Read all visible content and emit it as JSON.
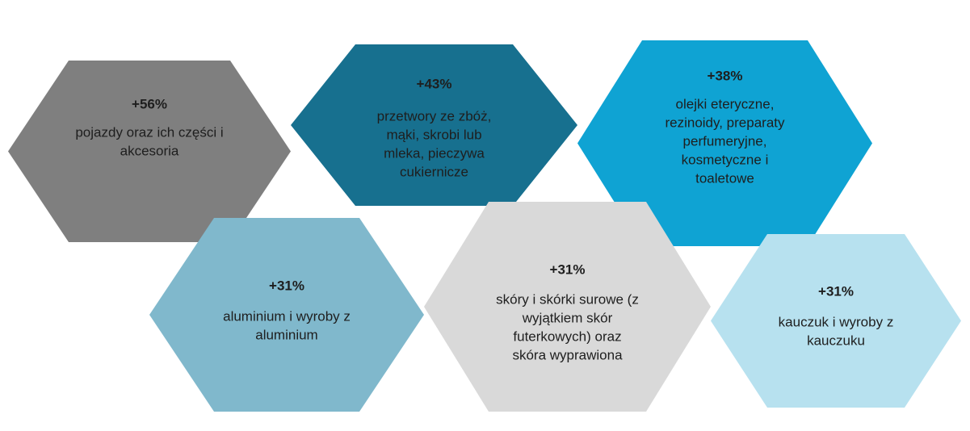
{
  "hexagons": [
    {
      "value": "+56%",
      "lines": [
        "pojazdy oraz ich części i",
        "akcesoria"
      ]
    },
    {
      "value": "+43%",
      "lines": [
        "przetwory ze zbóż,",
        "mąki, skrobi lub",
        "mleka, pieczywa",
        "cukiernicze"
      ]
    },
    {
      "value": "+38%",
      "lines": [
        "olejki eteryczne,",
        "rezinoidy, preparaty",
        "perfumeryjne,",
        "kosmetyczne i",
        "toaletowe"
      ]
    },
    {
      "value": "+31%",
      "lines": [
        "aluminium i wyroby z",
        "aluminium"
      ]
    },
    {
      "value": "+31%",
      "lines": [
        "skóry i skórki surowe (z",
        "wyjątkiem skór",
        "futerkowych) oraz",
        "skóra wyprawiona"
      ]
    },
    {
      "value": "+31%",
      "lines": [
        "kauczuk i wyroby z",
        "kauczuku"
      ]
    }
  ]
}
